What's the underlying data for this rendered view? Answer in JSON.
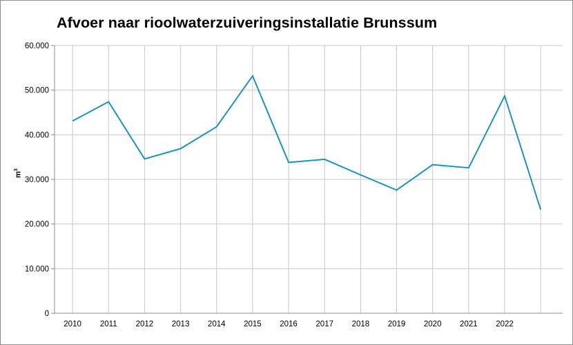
{
  "chart_data": {
    "type": "line",
    "title": "Afvoer naar rioolwaterzuiveringsinstallatie Brunssum",
    "xlabel": "",
    "ylabel": "m",
    "ylabel_superscript": "3",
    "categories": [
      "2010",
      "2011",
      "2012",
      "2013",
      "2014",
      "2015",
      "2016",
      "2017",
      "2018",
      "2019",
      "2020",
      "2021",
      "2022",
      ""
    ],
    "series": [
      {
        "values": [
          43100,
          47400,
          34600,
          36900,
          41800,
          53200,
          33800,
          34500,
          31000,
          27600,
          33300,
          32600,
          48700,
          23200
        ],
        "color": "#1a93bf"
      }
    ],
    "ylim": [
      0,
      60000
    ],
    "yticks": [
      0,
      10000,
      20000,
      30000,
      40000,
      50000,
      60000
    ],
    "ytick_labels": [
      "0",
      "10.000",
      "20.000",
      "30.000",
      "40.000",
      "50.000",
      "60.000"
    ],
    "grid": true,
    "legend": "none"
  }
}
